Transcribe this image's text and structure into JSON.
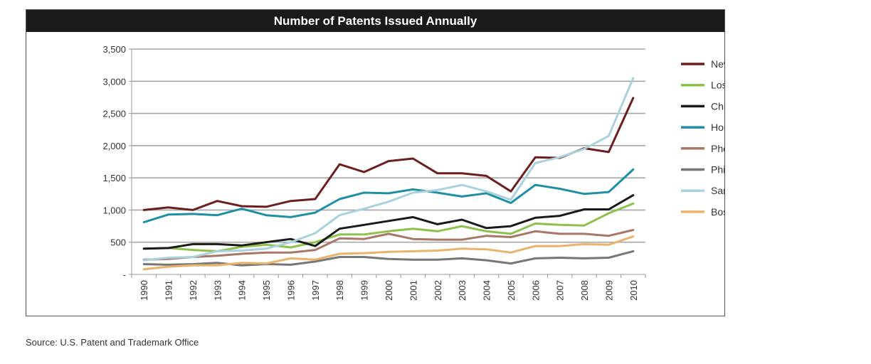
{
  "chart_data": {
    "type": "line",
    "title": "Number of Patents Issued Annually",
    "xlabel": "",
    "ylabel": "",
    "ylim": [
      0,
      3500
    ],
    "yticks": [
      0,
      500,
      1000,
      1500,
      2000,
      2500,
      3000,
      3500
    ],
    "ytick_labels": [
      "-",
      "500",
      "1,000",
      "1,500",
      "2,000",
      "2,500",
      "3,000",
      "3,500"
    ],
    "categories": [
      "1990",
      "1991",
      "1992",
      "1993",
      "1994",
      "1995",
      "1996",
      "1997",
      "1998",
      "1999",
      "2000",
      "2001",
      "2002",
      "2003",
      "2004",
      "2005",
      "2006",
      "2007",
      "2008",
      "2009",
      "2010"
    ],
    "grid": "horizontal",
    "legend_position": "right",
    "series": [
      {
        "name": "New York City",
        "color": "#6b1f1f",
        "values": [
          1000,
          1040,
          1000,
          1140,
          1060,
          1050,
          1140,
          1170,
          1710,
          1590,
          1760,
          1800,
          1570,
          1570,
          1530,
          1290,
          1820,
          1810,
          1960,
          1900,
          2740
        ]
      },
      {
        "name": "Los Angeles",
        "color": "#8dc14b",
        "values": [
          400,
          410,
          380,
          360,
          430,
          460,
          420,
          500,
          620,
          620,
          670,
          710,
          670,
          750,
          670,
          630,
          790,
          770,
          760,
          950,
          1100
        ]
      },
      {
        "name": "Chicago",
        "color": "#1a1a1a",
        "values": [
          400,
          410,
          470,
          470,
          450,
          500,
          550,
          440,
          710,
          770,
          830,
          890,
          780,
          850,
          720,
          750,
          880,
          910,
          1010,
          1010,
          1230
        ]
      },
      {
        "name": "Houston",
        "color": "#1f8fa6",
        "values": [
          810,
          930,
          940,
          920,
          1020,
          920,
          890,
          960,
          1170,
          1270,
          1260,
          1320,
          1270,
          1210,
          1260,
          1110,
          1390,
          1330,
          1250,
          1280,
          1630
        ]
      },
      {
        "name": "Phoenix",
        "color": "#a87766",
        "values": [
          230,
          240,
          270,
          290,
          320,
          340,
          340,
          380,
          560,
          550,
          630,
          550,
          540,
          540,
          600,
          580,
          670,
          630,
          630,
          600,
          690
        ]
      },
      {
        "name": "Philadelphia",
        "color": "#777777",
        "values": [
          160,
          150,
          160,
          180,
          140,
          160,
          150,
          200,
          270,
          270,
          240,
          230,
          230,
          250,
          220,
          170,
          250,
          260,
          250,
          260,
          360
        ]
      },
      {
        "name": "San Francisco",
        "color": "#a9d2dd",
        "values": [
          220,
          260,
          270,
          360,
          370,
          400,
          500,
          640,
          920,
          1020,
          1130,
          1270,
          1310,
          1390,
          1290,
          1160,
          1730,
          1820,
          1950,
          2150,
          3050
        ]
      },
      {
        "name": "Boston",
        "color": "#e9b36b",
        "values": [
          80,
          120,
          140,
          140,
          180,
          170,
          250,
          230,
          320,
          330,
          350,
          360,
          370,
          400,
          390,
          340,
          440,
          440,
          470,
          460,
          590
        ]
      }
    ]
  },
  "footer": {
    "source": "Source: U.S. Patent and Trademark Office"
  }
}
